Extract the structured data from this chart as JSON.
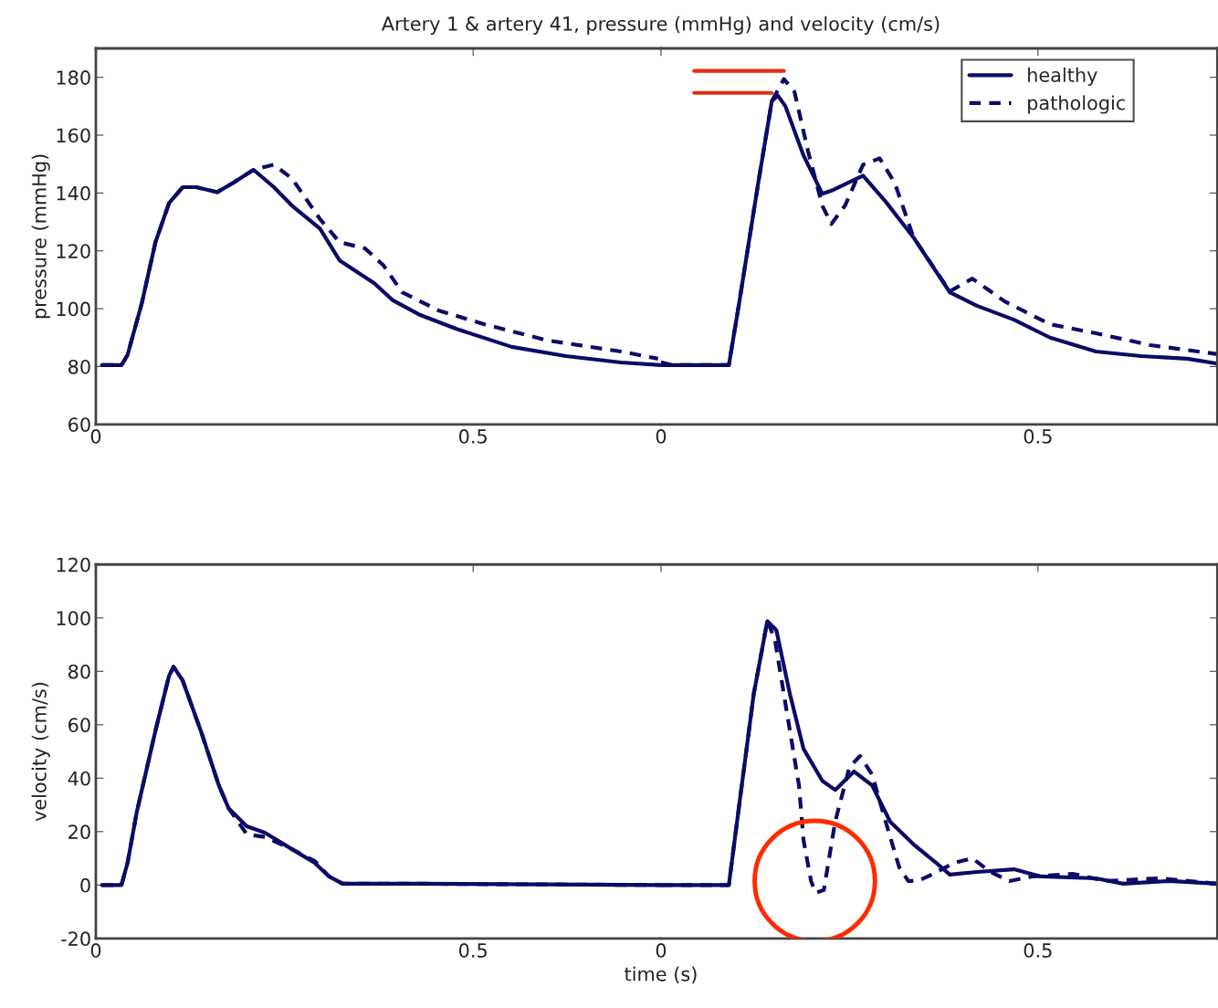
{
  "chart_data": [
    {
      "type": "line",
      "title": "Artery 1 & artery 41, pressure (mmHg) and velocity (cm/s)",
      "ylabel": "pressure (mmHg)",
      "xlim": [
        0,
        0.749
      ],
      "xticks": [
        0,
        0.5
      ],
      "ylim": [
        60,
        190
      ],
      "yticks": [
        60,
        80,
        100,
        120,
        140,
        160,
        180
      ],
      "series": [
        {
          "color": "#0c0c66",
          "line_style": "solid",
          "x": [
            0.008,
            0.034,
            0.042,
            0.061,
            0.079,
            0.097,
            0.115,
            0.133,
            0.161,
            0.182,
            0.209,
            0.236,
            0.26,
            0.297,
            0.323,
            0.369,
            0.393,
            0.43,
            0.478,
            0.551,
            0.623,
            0.696,
            0.749
          ],
          "values": [
            80.5,
            80.5,
            84,
            102,
            123,
            136.5,
            142,
            142,
            140.3,
            143.5,
            148,
            142,
            135.6,
            127.7,
            116.7,
            108.8,
            103,
            97.8,
            93,
            86.8,
            83.6,
            81.4,
            80.5
          ]
        },
        {
          "color": "#0c0c66",
          "line_style": "dashed",
          "x": [
            0.008,
            0.034,
            0.042,
            0.061,
            0.079,
            0.097,
            0.115,
            0.133,
            0.161,
            0.182,
            0.209,
            0.236,
            0.26,
            0.297,
            0.323,
            0.357,
            0.381,
            0.406,
            0.454,
            0.515,
            0.599,
            0.696,
            0.745
          ],
          "values": [
            80.5,
            80.5,
            84,
            102,
            123,
            136.5,
            142,
            142,
            140.3,
            143.5,
            148,
            149.8,
            145,
            131,
            123,
            120.8,
            115,
            105.7,
            99.4,
            94.6,
            89,
            85.2,
            82.7
          ]
        }
      ]
    },
    {
      "type": "line",
      "xlim": [
        0,
        0.738
      ],
      "xticks": [
        0,
        0.5
      ],
      "ylim": [
        60,
        190
      ],
      "yticks": [
        60,
        80,
        100,
        120,
        140,
        160,
        180
      ],
      "tick_labels": "x",
      "legend": "top right",
      "series": [
        {
          "name": "healthy",
          "color": "#0c0c66",
          "line_style": "solid",
          "x": [
            0,
            0.09,
            0.104,
            0.129,
            0.147,
            0.155,
            0.165,
            0.189,
            0.214,
            0.228,
            0.268,
            0.298,
            0.335,
            0.383,
            0.419,
            0.468,
            0.516,
            0.577,
            0.637,
            0.698,
            0.738
          ],
          "values": [
            80.5,
            80.5,
            102.5,
            143.5,
            171.8,
            173.7,
            170,
            153,
            139.7,
            141,
            146,
            137,
            124.6,
            105.7,
            101,
            96.2,
            90,
            85.2,
            83.6,
            82.7,
            81
          ]
        },
        {
          "name": "pathologic",
          "color": "#0c0c66",
          "line_style": "dashed",
          "x": [
            0,
            0.014,
            0.09,
            0.104,
            0.129,
            0.147,
            0.163,
            0.177,
            0.195,
            0.214,
            0.226,
            0.244,
            0.268,
            0.29,
            0.31,
            0.335,
            0.383,
            0.413,
            0.456,
            0.516,
            0.577,
            0.649,
            0.738
          ],
          "values": [
            81.5,
            80.5,
            80.5,
            102.5,
            143.5,
            171.8,
            179.4,
            175,
            154.5,
            135.6,
            129.3,
            135.6,
            149.8,
            152,
            143.5,
            124.6,
            106,
            110.4,
            102.5,
            94.6,
            91.5,
            87.4,
            84.3
          ]
        },
        {
          "color": "#e03010",
          "line_style": "solid",
          "x": [
            0.044,
            0.163
          ],
          "values": [
            182.2,
            182.2
          ]
        },
        {
          "color": "#e03010",
          "line_style": "solid",
          "x": [
            0.044,
            0.147
          ],
          "values": [
            174.6,
            174.6
          ]
        }
      ]
    },
    {
      "type": "line",
      "xlabel": "time (s)",
      "ylabel": "velocity (cm/s)",
      "xlim": [
        0,
        0.749
      ],
      "xticks": [
        0,
        0.5
      ],
      "ylim": [
        -20,
        120
      ],
      "yticks": [
        -20,
        0,
        20,
        40,
        60,
        80,
        100,
        120
      ],
      "series": [
        {
          "color": "#0c0c66",
          "line_style": "solid",
          "x": [
            0.008,
            0.034,
            0.042,
            0.054,
            0.079,
            0.097,
            0.103,
            0.115,
            0.139,
            0.163,
            0.176,
            0.2,
            0.224,
            0.26,
            0.29,
            0.309,
            0.327,
            0.418,
            0.749
          ],
          "values": [
            0,
            0,
            8.3,
            27,
            57.8,
            78.3,
            81.7,
            76.6,
            57.8,
            37.3,
            28.7,
            22,
            19.6,
            13.4,
            8.3,
            3.2,
            0.5,
            0.5,
            0
          ]
        },
        {
          "color": "#0c0c66",
          "line_style": "dashed",
          "x": [
            0.008,
            0.034,
            0.042,
            0.054,
            0.079,
            0.097,
            0.103,
            0.115,
            0.139,
            0.163,
            0.176,
            0.2,
            0.224,
            0.26,
            0.29,
            0.309,
            0.327,
            0.418,
            0.749
          ],
          "values": [
            0,
            0,
            8.3,
            27,
            57.8,
            78.3,
            81.7,
            76.6,
            57.8,
            37.3,
            28.7,
            19,
            18,
            13.4,
            9,
            3.2,
            0.5,
            0.5,
            0
          ]
        }
      ]
    },
    {
      "type": "line",
      "xlim": [
        0,
        0.738
      ],
      "xticks": [
        0,
        0.5
      ],
      "ylim": [
        -20,
        120
      ],
      "yticks": [
        -20,
        0,
        20,
        40,
        60,
        80,
        100,
        120
      ],
      "tick_labels": "x",
      "series": [
        {
          "color": "#0c0c66",
          "line_style": "solid",
          "x": [
            0,
            0.09,
            0.104,
            0.123,
            0.141,
            0.153,
            0.171,
            0.189,
            0.214,
            0.231,
            0.256,
            0.28,
            0.304,
            0.335,
            0.365,
            0.383,
            0.419,
            0.468,
            0.504,
            0.577,
            0.613,
            0.674,
            0.738
          ],
          "values": [
            0,
            0,
            30.5,
            71.5,
            98.8,
            95.4,
            71.5,
            51,
            39,
            35.6,
            42.5,
            37.3,
            23.7,
            15.2,
            8.3,
            3.9,
            4.9,
            5.9,
            3.2,
            2.5,
            0.5,
            1.5,
            0.5
          ]
        },
        {
          "color": "#0c0c66",
          "line_style": "dashed",
          "x": [
            0,
            0.09,
            0.104,
            0.123,
            0.141,
            0.151,
            0.165,
            0.183,
            0.189,
            0.199,
            0.205,
            0.216,
            0.231,
            0.25,
            0.264,
            0.28,
            0.298,
            0.316,
            0.328,
            0.341,
            0.359,
            0.389,
            0.413,
            0.437,
            0.462,
            0.492,
            0.546,
            0.589,
            0.661,
            0.738
          ],
          "values": [
            0,
            0,
            30.5,
            71.5,
            98.8,
            92,
            68,
            37.3,
            16.9,
            1.5,
            -2.9,
            -1.9,
            23.7,
            44.2,
            48.3,
            41.4,
            23.7,
            6.6,
            1.5,
            1.5,
            3.9,
            8.3,
            10,
            4.9,
            1.5,
            3.2,
            4.2,
            1.5,
            2.5,
            0.5
          ]
        },
        {
          "type": "scatter",
          "marker": "circle",
          "color": "#ff2a00",
          "x": [
            0.204
          ],
          "values": [
            1.5
          ]
        }
      ]
    }
  ]
}
